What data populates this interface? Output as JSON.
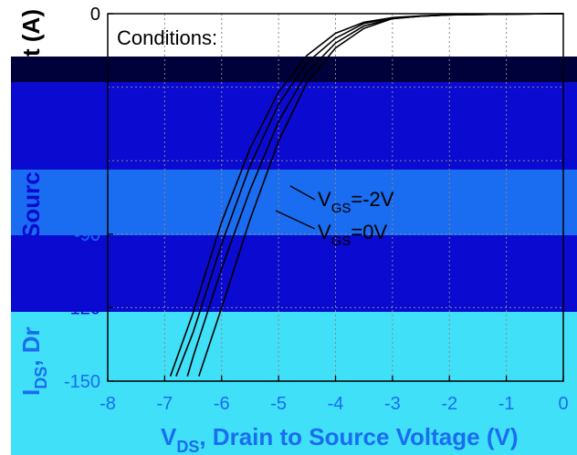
{
  "chart_data": {
    "type": "line",
    "title": "",
    "xlabel": "V_DS, Drain to Source Voltage (V)",
    "xlabel_parts": {
      "main": "V",
      "sub": "DS",
      "rest": ", Drain to Source Voltage (V)"
    },
    "ylabel": "I_DS, Drain to Source Current (A)",
    "ylabel_visible_fragments": [
      "t (A)",
      "Sourc",
      "I",
      "DS",
      ", Dr"
    ],
    "xlim": [
      -8,
      0
    ],
    "ylim": [
      -150,
      0
    ],
    "x_ticks": [
      "-8",
      "-7",
      "-6",
      "-5",
      "-4",
      "-3",
      "-2",
      "-1",
      "0"
    ],
    "y_ticks": [
      {
        "value": 0,
        "label": "0"
      },
      {
        "value": -90,
        "label": "-90"
      },
      {
        "value": -120,
        "label": "-120"
      },
      {
        "value": -150,
        "label": "-150"
      }
    ],
    "grid": true,
    "annotations": {
      "conditions": "Conditions:",
      "vgs_labels": [
        {
          "main": "V",
          "sub": "GS",
          "rest": "=-2V"
        },
        {
          "main": "V",
          "sub": "GS",
          "rest": "=0V"
        }
      ]
    },
    "series": [
      {
        "x": [
          0,
          -1,
          -2,
          -2.5,
          -3,
          -3.5,
          -4,
          -4.5,
          -5,
          -5.5,
          -6,
          -6.4
        ],
        "y": [
          0,
          -0.2,
          -0.5,
          -1,
          -2,
          -6,
          -14,
          -28,
          -52,
          -84,
          -120,
          -148
        ]
      },
      {
        "x": [
          0,
          -1,
          -2,
          -2.5,
          -3,
          -3.5,
          -4,
          -4.5,
          -5,
          -5.5,
          -6,
          -6.5,
          -6.6
        ],
        "y": [
          0,
          -0.2,
          -0.5,
          -1,
          -2,
          -5,
          -12,
          -24,
          -44,
          -72,
          -104,
          -140,
          -148
        ]
      },
      {
        "x": [
          0,
          -1,
          -2,
          -2.5,
          -3,
          -3.5,
          -4,
          -4.5,
          -5,
          -5.5,
          -6,
          -6.5,
          -6.8
        ],
        "y": [
          0,
          -0.2,
          -0.5,
          -1,
          -1.8,
          -4,
          -10,
          -20,
          -37,
          -62,
          -94,
          -130,
          -148
        ]
      },
      {
        "x": [
          0,
          -1,
          -2,
          -2.5,
          -3,
          -3.5,
          -4,
          -4.5,
          -5,
          -5.5,
          -6,
          -6.5,
          -6.9
        ],
        "y": [
          0,
          -0.2,
          -0.4,
          -0.9,
          -1.6,
          -3.5,
          -8,
          -17,
          -32,
          -55,
          -85,
          -122,
          -148
        ]
      }
    ]
  },
  "colors": {
    "background": "#ffffff",
    "bar_black": "#00003a",
    "band_dark_blue": "#0a0ad0",
    "band_mid_blue": "#1a6cf0",
    "band_cyan": "#40e0f8",
    "curve": "#000000"
  }
}
